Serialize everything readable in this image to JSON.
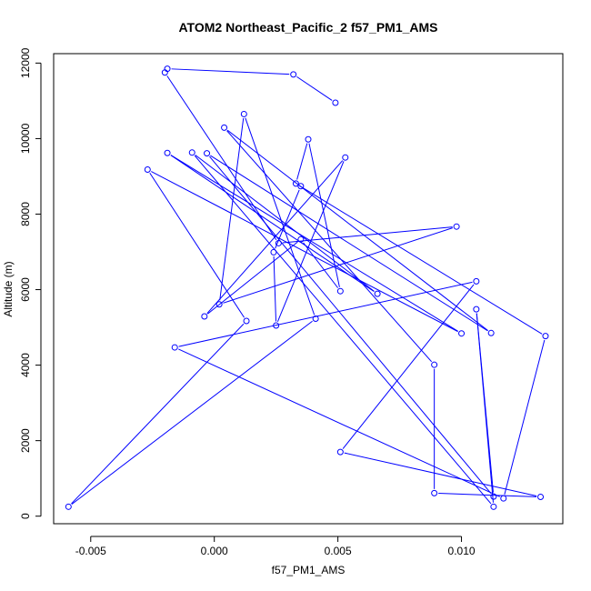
{
  "chart_data": {
    "type": "line",
    "title": "ATOM2 Northeast_Pacific_2 f57_PM1_AMS",
    "xlabel": "f57_PM1_AMS",
    "ylabel": "Altitude (m)",
    "xlim": [
      -0.0065,
      0.0141
    ],
    "ylim": [
      -200,
      12250
    ],
    "xticks": [
      -0.005,
      0.0,
      0.005,
      0.01
    ],
    "xtick_labels": [
      "-0.005",
      "0.000",
      "0.005",
      "0.010"
    ],
    "yticks": [
      0,
      2000,
      4000,
      6000,
      8000,
      10000,
      12000
    ],
    "ytick_labels": [
      "0",
      "2000",
      "4000",
      "6000",
      "8000",
      "10000",
      "12000"
    ],
    "grid": false,
    "series": [
      {
        "color": "#0000ff",
        "marker": "open-circle",
        "points": [
          {
            "x": 0.0049,
            "y": 10950
          },
          {
            "x": 0.0032,
            "y": 11700
          },
          {
            "x": -0.0019,
            "y": 11850
          },
          {
            "x": -0.002,
            "y": 11750
          },
          {
            "x": 0.0026,
            "y": 7230
          },
          {
            "x": 0.0098,
            "y": 7670
          },
          {
            "x": 0.0002,
            "y": 5610
          },
          {
            "x": 0.0012,
            "y": 10650
          },
          {
            "x": 0.0041,
            "y": 5230
          },
          {
            "x": -0.0059,
            "y": 250
          },
          {
            "x": 0.0013,
            "y": 5170
          },
          {
            "x": -0.0027,
            "y": 9180
          },
          {
            "x": 0.01,
            "y": 4840
          },
          {
            "x": -0.0019,
            "y": 9620
          },
          {
            "x": 0.0066,
            "y": 5890
          },
          {
            "x": -0.0009,
            "y": 9630
          },
          {
            "x": 0.0113,
            "y": 250
          },
          {
            "x": 0.0106,
            "y": 5480
          },
          {
            "x": 0.0113,
            "y": 520
          },
          {
            "x": -0.0003,
            "y": 9610
          },
          {
            "x": 0.0112,
            "y": 4850
          },
          {
            "x": 0.0004,
            "y": 10290
          },
          {
            "x": 0.0089,
            "y": 4010
          },
          {
            "x": 0.0089,
            "y": 610
          },
          {
            "x": 0.0132,
            "y": 510
          },
          {
            "x": 0.0051,
            "y": 1700
          },
          {
            "x": 0.0106,
            "y": 6220
          },
          {
            "x": -0.0016,
            "y": 4470
          },
          {
            "x": 0.0117,
            "y": 470
          },
          {
            "x": 0.0134,
            "y": 4770
          },
          {
            "x": 0.0033,
            "y": 8810
          },
          {
            "x": 0.0038,
            "y": 9980
          },
          {
            "x": 0.0051,
            "y": 5960
          },
          {
            "x": 0.0035,
            "y": 7330
          },
          {
            "x": -0.0004,
            "y": 5290
          },
          {
            "x": 0.0053,
            "y": 9500
          },
          {
            "x": 0.0025,
            "y": 5050
          },
          {
            "x": 0.0024,
            "y": 6990
          },
          {
            "x": 0.0035,
            "y": 8740
          }
        ]
      }
    ]
  }
}
